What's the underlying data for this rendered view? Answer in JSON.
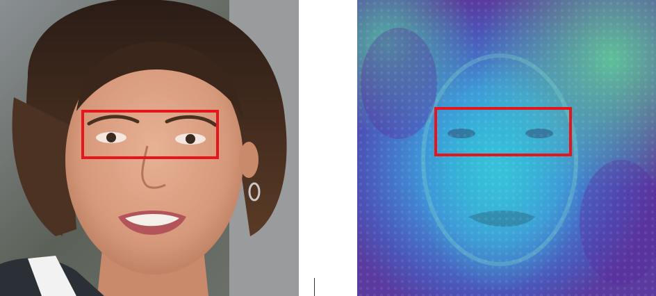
{
  "figure": {
    "left_panel": {
      "kind": "photo",
      "subject": "face-portrait"
    },
    "right_panel": {
      "kind": "attention-heatmap-overlay",
      "colormap": [
        "#4a2a9e",
        "#3b5bc6",
        "#2aa6d8",
        "#4fd0a2",
        "#5fc79a"
      ]
    },
    "highlight": {
      "region": "eyes",
      "box_color": "#e8141b"
    }
  }
}
